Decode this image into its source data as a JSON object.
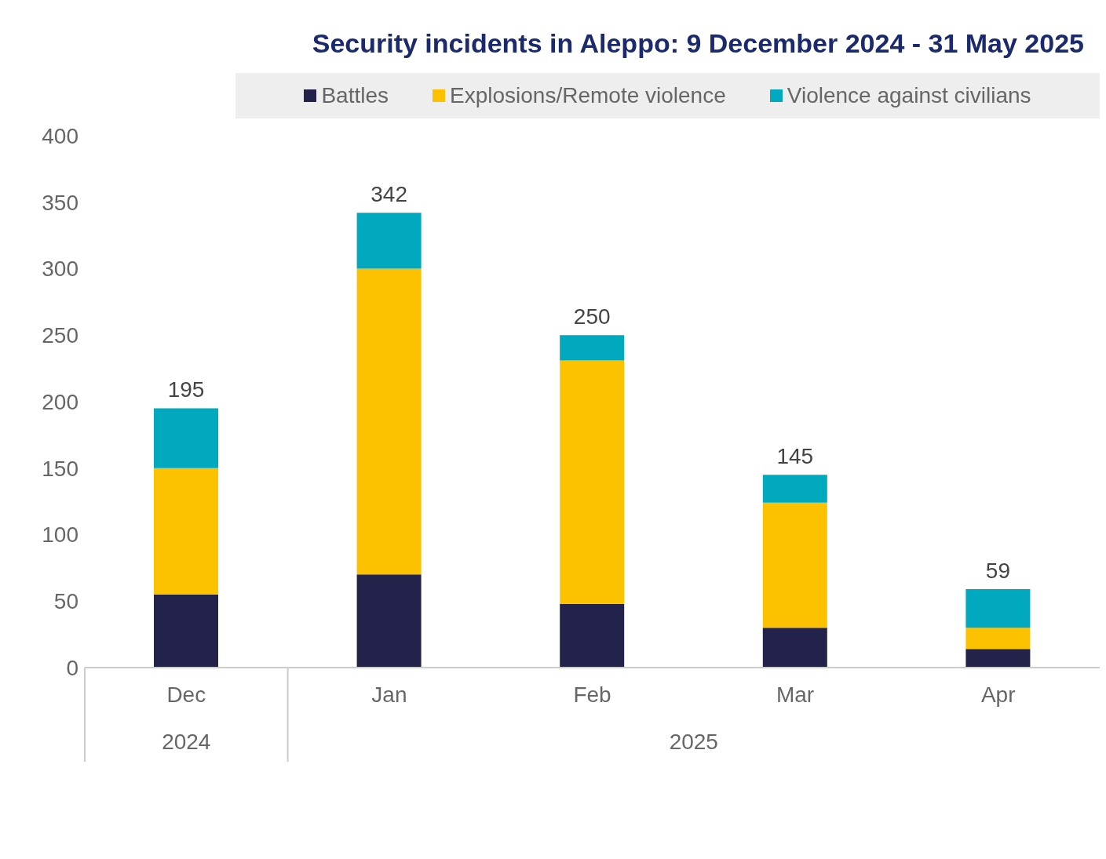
{
  "chart_data": {
    "type": "bar",
    "title": "Security incidents in Aleppo: 9 December 2024 - 31 May 2025",
    "categories": [
      "Dec",
      "Jan",
      "Feb",
      "Mar",
      "Apr"
    ],
    "series": [
      {
        "name": "Battles",
        "color": "#23224a",
        "values": [
          55,
          70,
          48,
          30,
          14
        ]
      },
      {
        "name": "Explosions/Remote violence",
        "color": "#fcc200",
        "values": [
          95,
          230,
          183,
          94,
          16
        ]
      },
      {
        "name": "Violence against civilians",
        "color": "#00a9bd",
        "values": [
          45,
          42,
          19,
          21,
          29
        ]
      }
    ],
    "stacked": true,
    "totals": [
      "195",
      "342",
      "250",
      "145",
      "59"
    ],
    "annotations": [
      "2024",
      "2025"
    ],
    "ylim": [
      0,
      400
    ],
    "yticks": [
      0,
      50,
      100,
      150,
      200,
      250,
      300,
      350,
      400
    ],
    "legend": "top"
  }
}
